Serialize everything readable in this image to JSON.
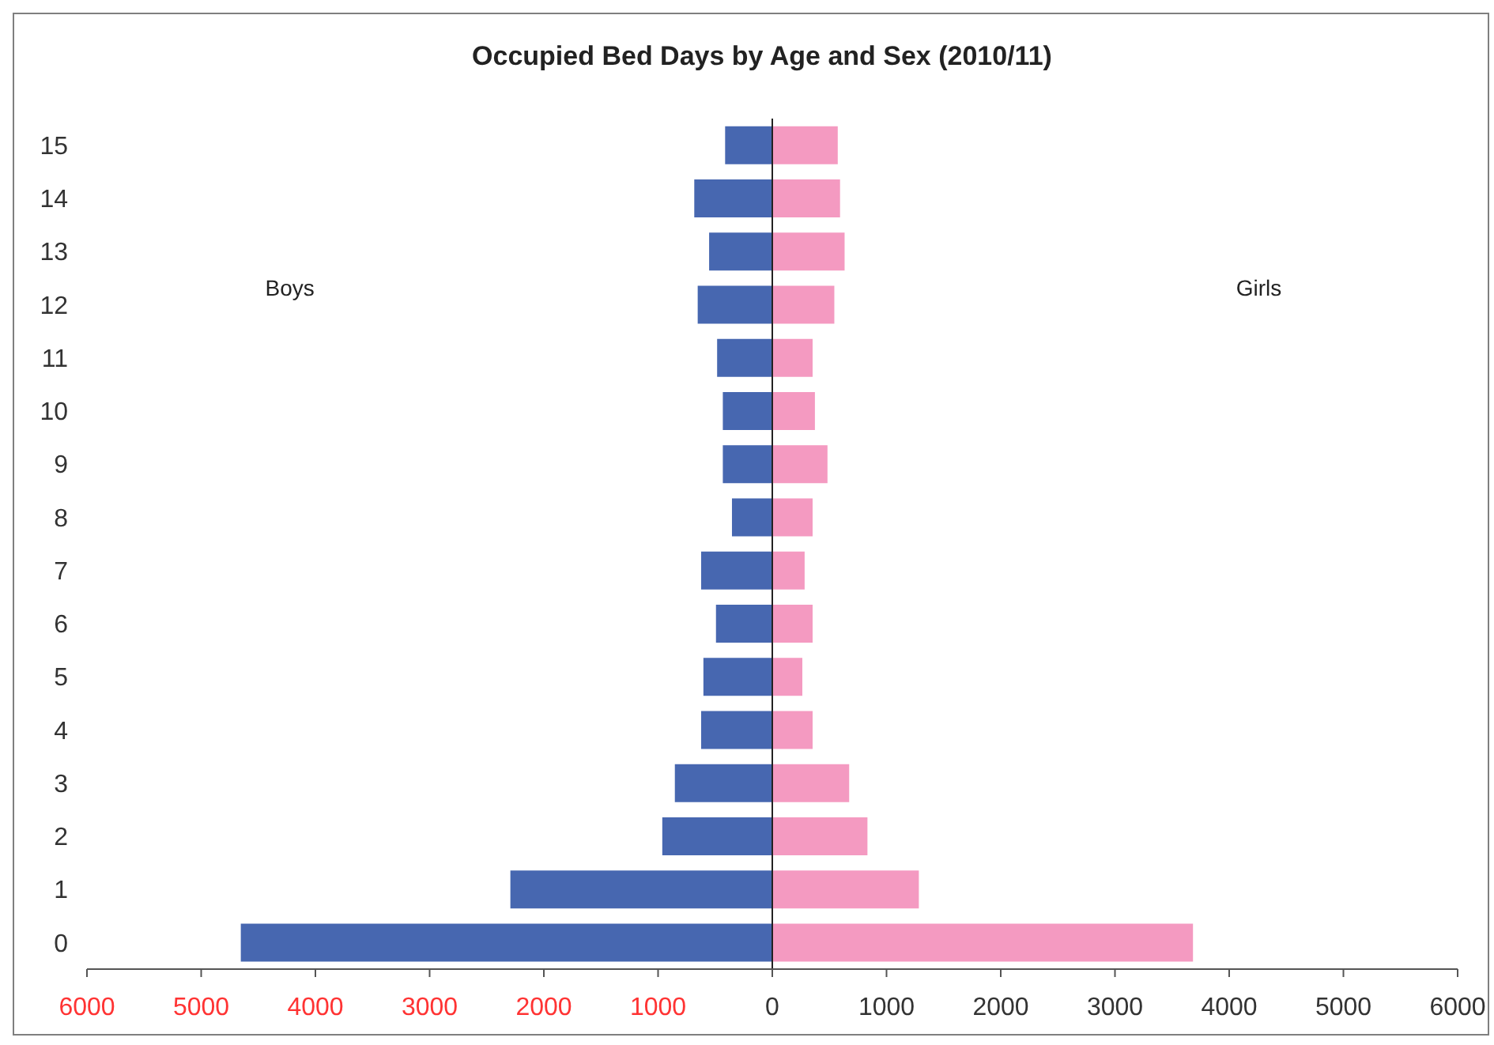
{
  "chart_data": {
    "type": "bar",
    "orientation": "horizontal",
    "stacked": true,
    "title": "Occupied Bed Days by Age and Sex (2010/11)",
    "categories": [
      "15",
      "14",
      "13",
      "12",
      "11",
      "10",
      "9",
      "8",
      "7",
      "6",
      "5",
      "4",
      "3",
      "2",
      "1",
      "0"
    ],
    "series": [
      {
        "name": "Boys",
        "color": "#4767b0",
        "values": [
          -420,
          -690,
          -560,
          -660,
          -490,
          -440,
          -440,
          -360,
          -630,
          -500,
          -610,
          -630,
          -860,
          -970,
          -2300,
          -4660
        ]
      },
      {
        "name": "Girls",
        "color": "#f49ac1",
        "values": [
          580,
          600,
          640,
          550,
          360,
          380,
          490,
          360,
          290,
          360,
          270,
          360,
          680,
          840,
          1290,
          3690
        ]
      }
    ],
    "xlim": [
      -6000,
      6000
    ],
    "xticks": [
      {
        "value": -6000,
        "label": "6000"
      },
      {
        "value": -5000,
        "label": "5000"
      },
      {
        "value": -4000,
        "label": "4000"
      },
      {
        "value": -3000,
        "label": "3000"
      },
      {
        "value": -2000,
        "label": "2000"
      },
      {
        "value": -1000,
        "label": "1000"
      },
      0,
      1000,
      2000,
      3000,
      4000,
      5000,
      6000
    ]
  }
}
